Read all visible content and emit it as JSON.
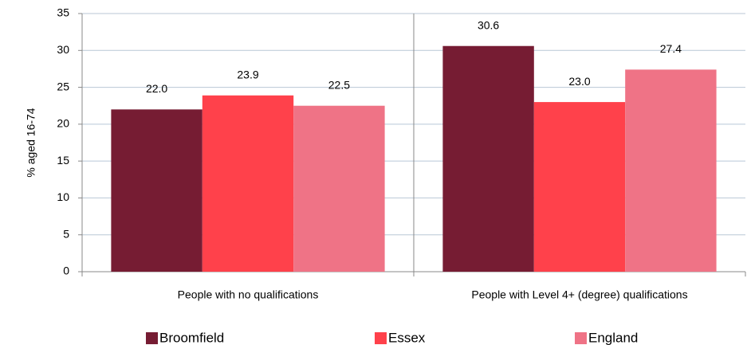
{
  "chart_data": {
    "type": "bar",
    "y_label": "% aged 16-74",
    "categories": [
      "People with no qualifications",
      "People with Level 4+ (degree) qualifications"
    ],
    "series": [
      {
        "name": "Broomfield",
        "color": "#761c33",
        "values": [
          22.0,
          30.6
        ],
        "value_labels": [
          "22.0",
          "30.6"
        ]
      },
      {
        "name": "Essex",
        "color": "#ff414b",
        "values": [
          23.9,
          23.0
        ],
        "value_labels": [
          "23.9",
          "23.0"
        ]
      },
      {
        "name": "England",
        "color": "#ef7386",
        "values": [
          22.5,
          27.4
        ],
        "value_labels": [
          "22.5",
          "27.4"
        ]
      }
    ],
    "ylim": [
      0,
      35
    ],
    "yticks": [
      0,
      5,
      10,
      15,
      20,
      25,
      30,
      35
    ],
    "grid": true,
    "legend": "bottom"
  }
}
